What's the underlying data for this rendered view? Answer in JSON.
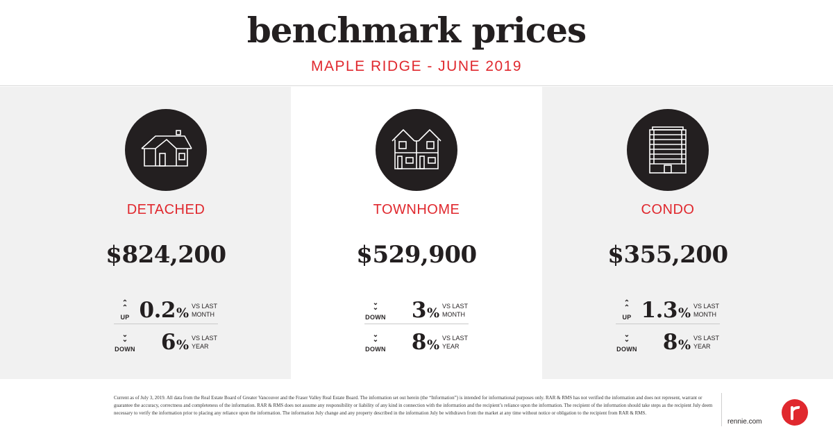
{
  "header": {
    "title": "benchmark prices",
    "subtitle": "MAPLE RIDGE - JUNE 2019"
  },
  "property_types": [
    {
      "icon": "detached-house-icon",
      "label": "DETACHED",
      "price": "$824,200",
      "stats": [
        {
          "direction": "UP",
          "chevron": "up",
          "value": "0.2",
          "unit": "%",
          "period_line1": "VS LAST",
          "period_line2": "MONTH"
        },
        {
          "direction": "DOWN",
          "chevron": "down",
          "value": "6",
          "unit": "%",
          "period_line1": "VS LAST",
          "period_line2": "YEAR"
        }
      ]
    },
    {
      "icon": "townhome-icon",
      "label": "TOWNHOME",
      "price": "$529,900",
      "stats": [
        {
          "direction": "DOWN",
          "chevron": "down",
          "value": "3",
          "unit": "%",
          "period_line1": "VS LAST",
          "period_line2": "MONTH"
        },
        {
          "direction": "DOWN",
          "chevron": "down",
          "value": "8",
          "unit": "%",
          "period_line1": "VS LAST",
          "period_line2": "YEAR"
        }
      ]
    },
    {
      "icon": "condo-building-icon",
      "label": "CONDO",
      "price": "$355,200",
      "stats": [
        {
          "direction": "UP",
          "chevron": "up",
          "value": "1.3",
          "unit": "%",
          "period_line1": "VS LAST",
          "period_line2": "MONTH"
        },
        {
          "direction": "DOWN",
          "chevron": "down",
          "value": "8",
          "unit": "%",
          "period_line1": "VS LAST",
          "period_line2": "YEAR"
        }
      ]
    }
  ],
  "footer": {
    "disclaimer": "Current as of July 3, 2019.  All data from the Real Estate Board of Greater Vancouver and the Fraser Valley Real Estate Board. The information set out herein (the “Information”) is intended for informational purposes only. RAR & RMS has not verified the information and does not represent, warrant or guarantee the accuracy, correctness and completeness of the information. RAR & RMS does not assume any responsibility or liability of any kind in connection with the information and the recipient’s  reliance upon the information. The recipient of the information should take steps as the recipient July deem necessary to verify the information prior to placing any reliance upon the information. The information July change and any property described in the information July be withdrawn from the market at any time without notice or obligation to the recipient from RAR & RMS.",
    "website": "rennie.com",
    "logo_letter": "r"
  },
  "colors": {
    "accent": "#e0282e",
    "dark": "#231f20",
    "panel_grey": "#f1f1f1"
  }
}
